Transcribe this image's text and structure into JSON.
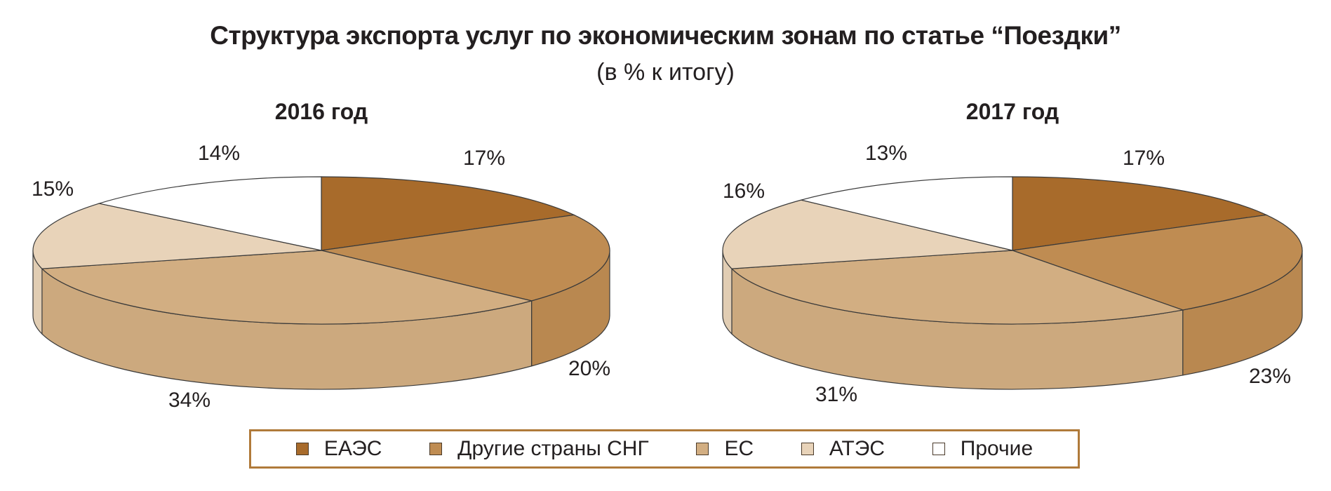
{
  "header": {
    "title": "Структура экспорта услуг по экономическим зонам по статье “Поездки”",
    "subtitle": "(в % к итогу)"
  },
  "chart_data": [
    {
      "type": "pie",
      "title": "2016 год",
      "categories": [
        "ЕАЭС",
        "Другие страны СНГ",
        "ЕС",
        "АТЭС",
        "Прочие"
      ],
      "values": [
        17,
        20,
        34,
        15,
        14
      ],
      "labels": [
        "17%",
        "20%",
        "34%",
        "15%",
        "14%"
      ],
      "colors": [
        "#a86b2b",
        "#bf8c52",
        "#d2ae82",
        "#e8d3b9",
        "#ffffff"
      ],
      "three_d": true
    },
    {
      "type": "pie",
      "title": "2017 год",
      "categories": [
        "ЕАЭС",
        "Другие страны СНГ",
        "ЕС",
        "АТЭС",
        "Прочие"
      ],
      "values": [
        17,
        23,
        31,
        16,
        13
      ],
      "labels": [
        "17%",
        "23%",
        "31%",
        "16%",
        "13%"
      ],
      "colors": [
        "#a86b2b",
        "#bf8c52",
        "#d2ae82",
        "#e8d3b9",
        "#ffffff"
      ],
      "three_d": true
    }
  ],
  "legend": {
    "items": [
      {
        "label": "ЕАЭС",
        "color": "#a86b2b"
      },
      {
        "label": "Другие страны СНГ",
        "color": "#bf8c52"
      },
      {
        "label": "ЕС",
        "color": "#d2ae82"
      },
      {
        "label": "АТЭС",
        "color": "#e8d3b9"
      },
      {
        "label": "Прочие",
        "color": "#ffffff"
      }
    ]
  }
}
